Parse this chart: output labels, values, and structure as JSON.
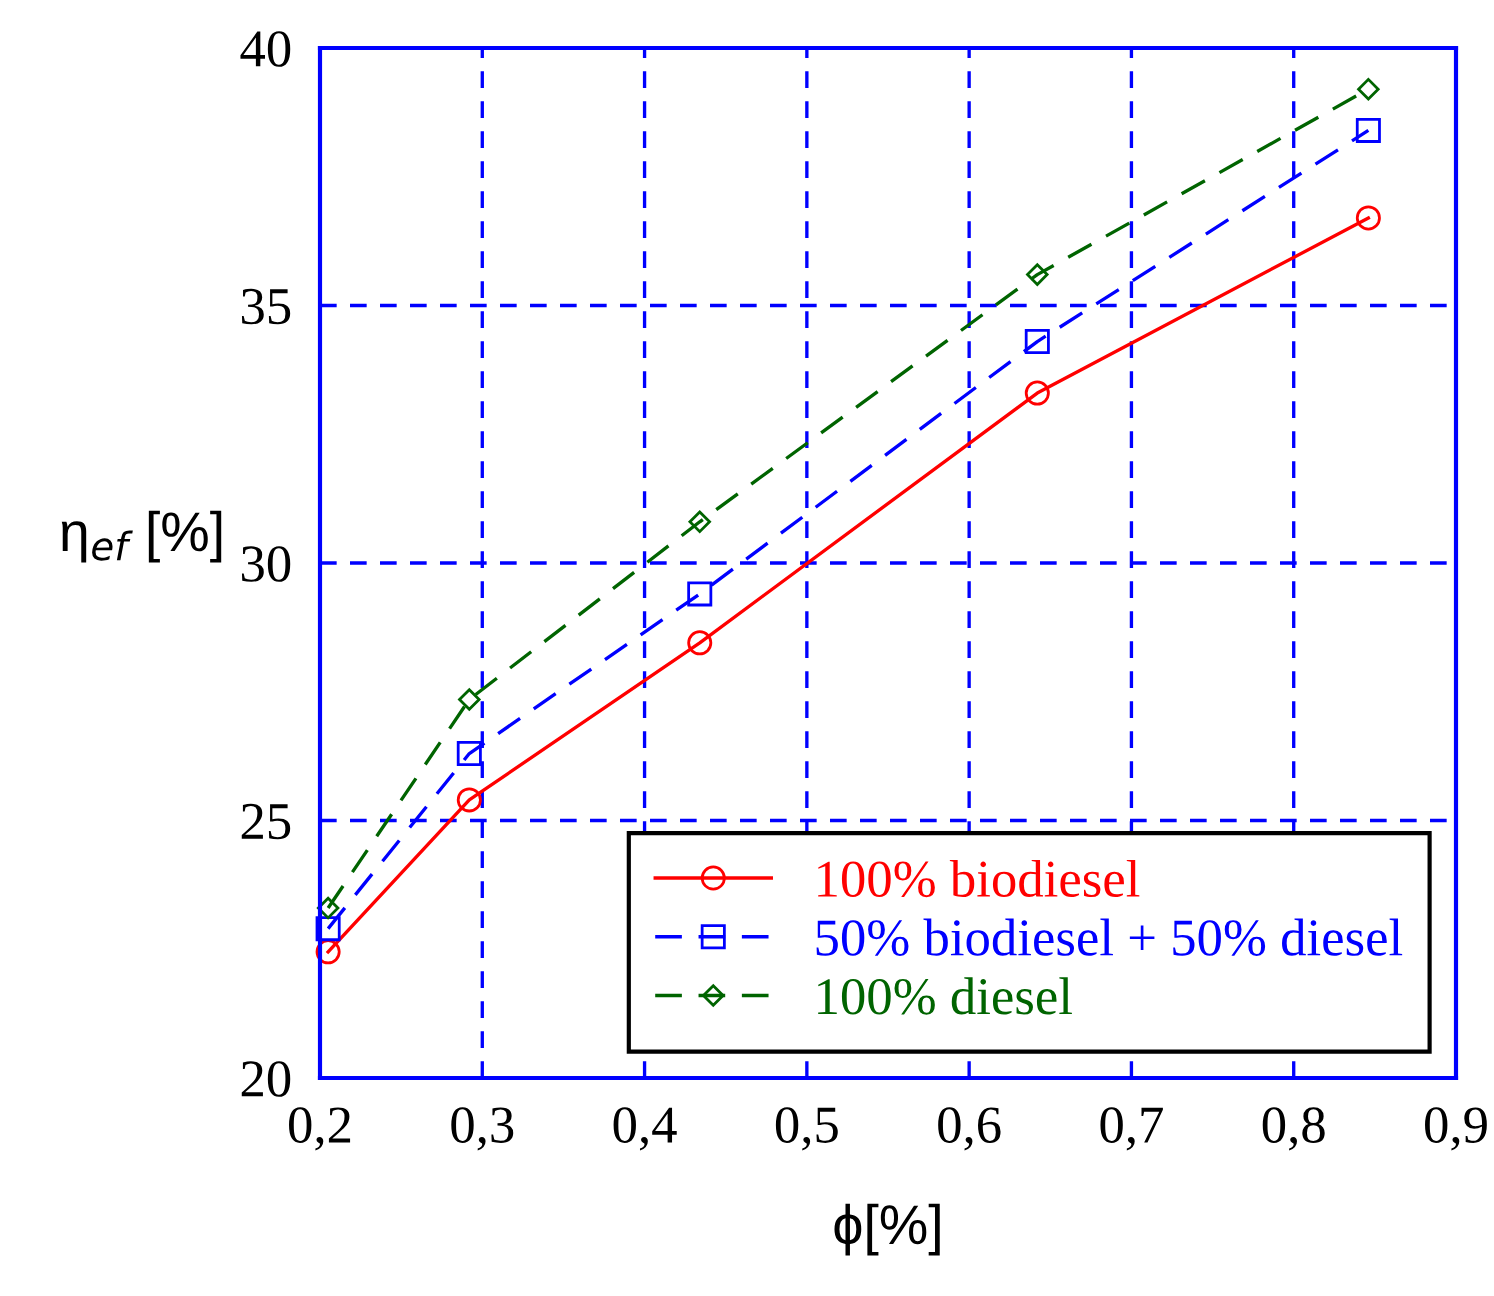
{
  "chart_data": {
    "type": "line",
    "xlabel": "ϕ[%]",
    "ylabel": "η$_{ef}$ [%]",
    "x": [
      0.205,
      0.292,
      0.434,
      0.642,
      0.846
    ],
    "series": [
      {
        "name": "100% biodiesel",
        "color": "#ff0000",
        "marker": "circle",
        "line_style": "solid",
        "values": [
          22.45,
          25.4,
          28.45,
          33.3,
          36.7
        ]
      },
      {
        "name": "50% biodiesel + 50% diesel",
        "color": "#0000ff",
        "marker": "square",
        "line_style": "dashed",
        "values": [
          22.9,
          26.3,
          29.4,
          34.3,
          38.4
        ]
      },
      {
        "name": "100% diesel",
        "color": "#006400",
        "marker": "diamond",
        "line_style": "dashed",
        "values": [
          23.3,
          27.35,
          30.8,
          35.6,
          39.2
        ]
      }
    ],
    "xlim": [
      0.2,
      0.9
    ],
    "xticks": [
      {
        "value": 0.2,
        "label": "0,2"
      },
      {
        "value": 0.3,
        "label": "0,3"
      },
      {
        "value": 0.4,
        "label": "0,4"
      },
      {
        "value": 0.5,
        "label": "0,5"
      },
      {
        "value": 0.6,
        "label": "0,6"
      },
      {
        "value": 0.7,
        "label": "0,7"
      },
      {
        "value": 0.8,
        "label": "0,8"
      },
      {
        "value": 0.9,
        "label": "0,9"
      }
    ],
    "ylim": [
      20,
      40
    ],
    "yticks": [
      20,
      25,
      30,
      35,
      40
    ],
    "grid": true,
    "legend": "bottom right"
  }
}
